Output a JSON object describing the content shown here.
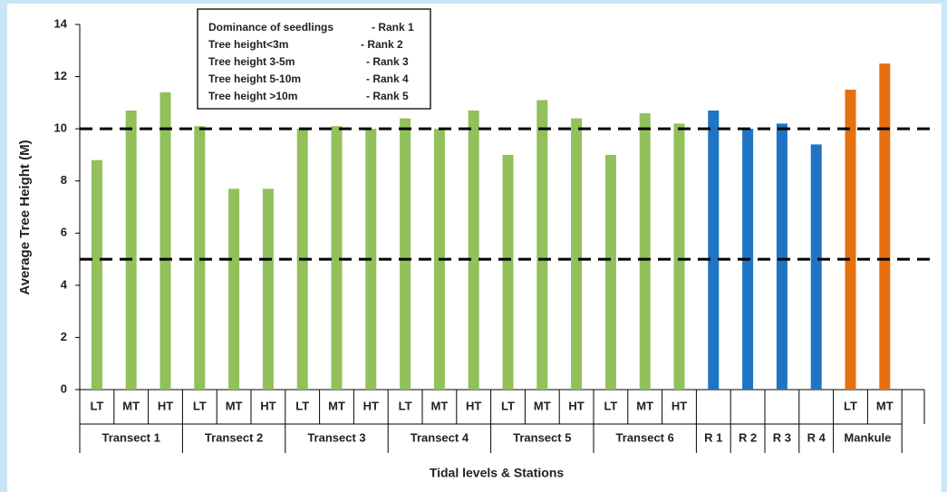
{
  "chart_data": {
    "type": "bar",
    "y_label": "Average Tree Height (M)",
    "x_label": "Tidal levels & Stations",
    "ylim": [
      0,
      14
    ],
    "yticks": [
      0,
      2,
      4,
      6,
      8,
      10,
      12,
      14
    ],
    "reference_lines": [
      10,
      5
    ],
    "groups": [
      {
        "name": "Transect 1",
        "color": "#92c05a",
        "categories": [
          "LT",
          "MT",
          "HT"
        ],
        "values": [
          8.8,
          10.7,
          11.4
        ]
      },
      {
        "name": "Transect 2",
        "color": "#92c05a",
        "categories": [
          "LT",
          "MT",
          "HT"
        ],
        "values": [
          10.1,
          7.7,
          7.7
        ]
      },
      {
        "name": "Transect 3",
        "color": "#92c05a",
        "categories": [
          "LT",
          "MT",
          "HT"
        ],
        "values": [
          10.0,
          10.1,
          10.0
        ]
      },
      {
        "name": "Transect 4",
        "color": "#92c05a",
        "categories": [
          "LT",
          "MT",
          "HT"
        ],
        "values": [
          10.4,
          10.0,
          10.7
        ]
      },
      {
        "name": "Transect 5",
        "color": "#92c05a",
        "categories": [
          "LT",
          "MT",
          "HT"
        ],
        "values": [
          9.0,
          11.1,
          10.4
        ]
      },
      {
        "name": "Transect 6",
        "color": "#92c05a",
        "categories": [
          "LT",
          "MT",
          "HT"
        ],
        "values": [
          9.0,
          10.6,
          10.2
        ]
      },
      {
        "name": "R 1",
        "color": "#1f74c4",
        "categories": [
          null
        ],
        "values": [
          10.7
        ]
      },
      {
        "name": "R 2",
        "color": "#1f74c4",
        "categories": [
          null
        ],
        "values": [
          10.0
        ]
      },
      {
        "name": "R 3",
        "color": "#1f74c4",
        "categories": [
          null
        ],
        "values": [
          10.2
        ]
      },
      {
        "name": "R 4",
        "color": "#1f74c4",
        "categories": [
          null
        ],
        "values": [
          9.4
        ]
      },
      {
        "name": "Mankule",
        "color": "#e66f10",
        "categories": [
          "LT",
          "MT"
        ],
        "values": [
          11.5,
          12.5
        ]
      }
    ],
    "annotation": [
      {
        "label": "Dominance of seedlings",
        "rank": "- Rank 1"
      },
      {
        "label": "Tree height<3m",
        "rank": "- Rank 2"
      },
      {
        "label": "Tree height 3-5m",
        "rank": "- Rank 3"
      },
      {
        "label": "Tree height 5-10m",
        "rank": "- Rank 4"
      },
      {
        "label": "Tree height >10m",
        "rank": "- Rank 5"
      }
    ]
  }
}
